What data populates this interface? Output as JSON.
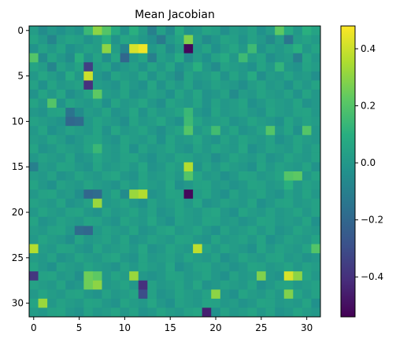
{
  "chart_data": {
    "type": "heatmap",
    "title": "Mean Jacobian",
    "rows": 32,
    "cols": 32,
    "x_ticks": [
      0,
      5,
      10,
      15,
      20,
      25,
      30
    ],
    "y_ticks": [
      0,
      5,
      10,
      15,
      20,
      25,
      30
    ],
    "colormap": "viridis",
    "vmin": -0.54,
    "vmax": 0.48,
    "colorbar_ticks": [
      0.4,
      0.2,
      0.0,
      -0.2,
      -0.4
    ],
    "colorbar_tick_labels": [
      "0.4",
      "0.2",
      "0.0",
      "−0.2",
      "−0.4"
    ],
    "values": [
      [
        0.02,
        -0.05,
        0.0,
        -0.03,
        0.01,
        -0.02,
        0.14,
        0.3,
        0.2,
        0.08,
        -0.02,
        0.1,
        0.02,
        -0.1,
        0.03,
        -0.05,
        0.08,
        -0.02,
        0.0,
        0.05,
        0.03,
        -0.04,
        0.02,
        0.0,
        0.04,
        -0.03,
        0.02,
        0.22,
        0.08,
        0.0,
        0.1,
        0.05
      ],
      [
        0.05,
        0.0,
        -0.08,
        0.02,
        0.05,
        0.03,
        -0.02,
        0.02,
        0.1,
        -0.02,
        0.06,
        0.04,
        0.0,
        -0.04,
        -0.12,
        0.0,
        0.05,
        0.28,
        0.02,
        -0.05,
        -0.01,
        0.05,
        0.03,
        -0.02,
        0.04,
        0.0,
        -0.06,
        0.02,
        -0.14,
        0.02,
        0.04,
        0.01
      ],
      [
        -0.02,
        0.04,
        0.0,
        0.05,
        -0.03,
        0.0,
        0.04,
        0.02,
        0.3,
        0.02,
        -0.08,
        0.42,
        0.46,
        0.0,
        0.04,
        -0.05,
        0.02,
        -0.52,
        0.0,
        0.05,
        -0.03,
        0.02,
        0.06,
        0.0,
        0.15,
        -0.02,
        0.03,
        0.0,
        0.04,
        0.1,
        0.0,
        0.05
      ],
      [
        0.2,
        -0.05,
        0.05,
        0.0,
        -0.05,
        0.1,
        -0.02,
        0.05,
        -0.04,
        0.06,
        -0.2,
        0.0,
        0.05,
        -0.1,
        0.03,
        0.0,
        0.08,
        -0.05,
        0.02,
        -0.03,
        0.04,
        0.08,
        0.0,
        0.15,
        0.02,
        0.05,
        -0.04,
        0.0,
        0.02,
        -0.1,
        0.06,
        0.0
      ],
      [
        0.05,
        0.02,
        -0.08,
        0.04,
        0.0,
        0.05,
        -0.35,
        0.02,
        0.05,
        -0.04,
        0.0,
        0.03,
        -0.02,
        0.05,
        0.0,
        0.06,
        -0.03,
        0.02,
        0.1,
        0.0,
        -0.05,
        0.04,
        0.02,
        0.0,
        -0.03,
        0.05,
        0.0,
        0.12,
        0.0,
        -0.02,
        0.05,
        0.02
      ],
      [
        0.0,
        0.06,
        0.02,
        -0.02,
        0.08,
        0.0,
        0.4,
        0.0,
        -0.04,
        0.05,
        0.02,
        0.0,
        0.06,
        -0.02,
        0.04,
        0.0,
        -0.06,
        0.05,
        0.0,
        0.02,
        0.06,
        -0.02,
        0.05,
        0.0,
        0.08,
        -0.04,
        0.02,
        0.0,
        0.05,
        0.0,
        0.02,
        -0.04
      ],
      [
        0.04,
        -0.03,
        0.05,
        0.0,
        0.02,
        0.04,
        -0.4,
        0.02,
        0.0,
        -0.02,
        0.05,
        0.0,
        -0.03,
        0.06,
        -0.02,
        0.04,
        0.0,
        0.05,
        -0.02,
        0.0,
        0.04,
        0.02,
        0.0,
        -0.04,
        0.02,
        0.05,
        0.0,
        0.02,
        -0.03,
        0.04,
        0.0,
        0.05
      ],
      [
        -0.02,
        0.05,
        0.0,
        0.06,
        -0.04,
        0.0,
        0.05,
        0.22,
        0.02,
        0.0,
        0.05,
        -0.02,
        0.0,
        0.04,
        0.02,
        -0.03,
        0.05,
        0.0,
        0.06,
        -0.02,
        0.0,
        0.04,
        -0.05,
        0.02,
        0.0,
        0.05,
        0.02,
        0.0,
        0.04,
        -0.02,
        0.05,
        0.0
      ],
      [
        0.05,
        0.0,
        0.2,
        -0.02,
        0.05,
        0.02,
        0.0,
        0.04,
        -0.03,
        0.05,
        0.0,
        0.02,
        0.06,
        0.0,
        -0.04,
        0.05,
        0.02,
        0.0,
        0.05,
        -0.02,
        0.04,
        0.0,
        0.02,
        0.05,
        -0.03,
        0.0,
        0.04,
        0.02,
        0.0,
        0.05,
        -0.02,
        0.0
      ],
      [
        0.0,
        -0.02,
        0.04,
        0.05,
        -0.15,
        -0.05,
        0.02,
        0.0,
        0.05,
        -0.02,
        0.0,
        0.06,
        -0.02,
        0.04,
        0.0,
        0.02,
        0.05,
        0.14,
        0.0,
        -0.03,
        0.05,
        0.0,
        0.02,
        0.04,
        0.0,
        -0.02,
        0.05,
        0.02,
        0.0,
        0.04,
        0.05,
        0.0
      ],
      [
        0.04,
        0.02,
        0.0,
        -0.02,
        -0.2,
        -0.18,
        0.0,
        0.05,
        0.02,
        0.0,
        -0.04,
        0.05,
        0.0,
        0.02,
        0.06,
        0.0,
        -0.03,
        0.15,
        0.05,
        0.0,
        0.02,
        0.04,
        -0.02,
        0.0,
        0.05,
        0.02,
        0.0,
        -0.03,
        0.05,
        0.0,
        0.04,
        0.02
      ],
      [
        0.0,
        0.05,
        -0.03,
        0.0,
        0.04,
        0.02,
        0.0,
        0.05,
        -0.02,
        0.06,
        0.0,
        0.02,
        0.05,
        0.0,
        -0.04,
        0.02,
        0.05,
        0.2,
        0.0,
        0.04,
        0.16,
        0.0,
        0.05,
        -0.02,
        0.0,
        0.04,
        0.2,
        0.0,
        0.05,
        -0.03,
        0.2,
        0.0
      ],
      [
        0.02,
        0.0,
        0.05,
        0.02,
        -0.03,
        0.0,
        0.04,
        0.05,
        0.0,
        -0.02,
        0.05,
        0.02,
        0.0,
        0.04,
        -0.03,
        0.05,
        0.0,
        0.02,
        0.06,
        0.0,
        -0.02,
        0.04,
        0.0,
        0.05,
        0.02,
        0.0,
        0.04,
        -0.03,
        0.0,
        0.05,
        0.02,
        0.0
      ],
      [
        0.05,
        -0.02,
        0.0,
        0.04,
        0.02,
        0.0,
        0.05,
        0.14,
        0.02,
        0.0,
        0.05,
        -0.03,
        0.04,
        0.0,
        0.02,
        0.05,
        0.0,
        -0.02,
        0.04,
        0.0,
        0.05,
        0.02,
        0.0,
        0.06,
        -0.03,
        0.0,
        0.04,
        0.02,
        0.0,
        0.05,
        0.0,
        0.04
      ],
      [
        0.0,
        0.04,
        0.02,
        0.0,
        0.05,
        -0.02,
        0.0,
        0.06,
        0.02,
        0.0,
        0.04,
        0.05,
        0.0,
        -0.03,
        0.02,
        0.0,
        0.05,
        0.04,
        0.0,
        0.02,
        -0.04,
        0.0,
        0.05,
        0.02,
        0.0,
        0.04,
        -0.02,
        0.0,
        0.05,
        0.02,
        0.0,
        0.04
      ],
      [
        -0.1,
        0.02,
        0.0,
        0.05,
        0.04,
        0.0,
        -0.02,
        0.05,
        0.0,
        0.02,
        0.04,
        0.0,
        0.06,
        -0.02,
        0.0,
        0.05,
        0.02,
        0.36,
        -0.02,
        0.04,
        0.0,
        0.05,
        0.02,
        0.0,
        -0.03,
        0.05,
        0.0,
        0.04,
        0.02,
        0.0,
        0.05,
        -0.02
      ],
      [
        0.02,
        0.0,
        0.04,
        -0.02,
        0.0,
        0.05,
        0.02,
        0.0,
        0.04,
        0.06,
        0.0,
        -0.02,
        0.05,
        0.0,
        0.02,
        0.04,
        0.0,
        0.2,
        0.05,
        0.0,
        0.02,
        -0.03,
        0.0,
        0.05,
        0.04,
        0.0,
        0.02,
        0.05,
        0.2,
        0.22,
        0.0,
        0.05
      ],
      [
        0.05,
        0.0,
        -0.03,
        0.04,
        0.02,
        0.0,
        0.05,
        0.02,
        0.0,
        -0.02,
        0.04,
        0.0,
        0.05,
        0.02,
        0.0,
        0.06,
        -0.03,
        0.0,
        0.04,
        0.05,
        0.0,
        0.02,
        -0.02,
        0.0,
        0.05,
        0.04,
        0.0,
        0.02,
        0.1,
        0.0,
        0.04,
        0.02
      ],
      [
        0.0,
        0.04,
        0.05,
        0.0,
        0.02,
        -0.04,
        -0.2,
        -0.18,
        0.0,
        0.05,
        -0.05,
        0.32,
        0.36,
        -0.02,
        0.0,
        0.05,
        0.04,
        -0.52,
        0.02,
        0.05,
        0.0,
        -0.03,
        0.04,
        0.0,
        0.02,
        0.05,
        0.0,
        -0.02,
        0.04,
        0.0,
        0.05,
        0.0
      ],
      [
        0.04,
        0.02,
        0.0,
        0.05,
        -0.02,
        0.0,
        0.04,
        0.32,
        0.0,
        0.02,
        0.05,
        0.0,
        -0.03,
        0.04,
        0.0,
        0.02,
        0.05,
        0.0,
        0.06,
        -0.02,
        0.0,
        0.04,
        0.02,
        0.0,
        0.05,
        -0.03,
        0.0,
        0.04,
        0.05,
        0.0,
        0.02,
        0.04
      ],
      [
        0.0,
        0.05,
        0.02,
        0.0,
        0.04,
        0.05,
        0.0,
        -0.02,
        0.04,
        0.0,
        0.02,
        0.05,
        0.0,
        0.04,
        -0.02,
        0.0,
        0.05,
        0.02,
        0.0,
        0.04,
        0.06,
        0.0,
        -0.03,
        0.05,
        0.02,
        0.0,
        0.04,
        0.0,
        0.02,
        0.05,
        0.0,
        0.04
      ],
      [
        0.05,
        -0.02,
        0.0,
        0.04,
        0.02,
        0.0,
        0.05,
        0.04,
        0.0,
        -0.02,
        0.05,
        0.02,
        0.0,
        0.06,
        0.0,
        -0.03,
        0.04,
        0.02,
        0.0,
        0.05,
        0.04,
        0.0,
        0.02,
        -0.02,
        0.0,
        0.05,
        0.04,
        0.0,
        0.02,
        0.0,
        0.05,
        -0.03
      ],
      [
        0.02,
        0.0,
        0.04,
        0.05,
        0.0,
        -0.18,
        -0.2,
        0.0,
        0.04,
        0.02,
        0.0,
        0.05,
        -0.02,
        0.0,
        0.04,
        0.06,
        0.0,
        0.02,
        0.05,
        0.0,
        -0.03,
        0.04,
        0.0,
        0.02,
        0.05,
        0.0,
        0.04,
        -0.02,
        0.0,
        0.05,
        0.02,
        0.0
      ],
      [
        0.0,
        0.05,
        0.02,
        0.0,
        -0.04,
        0.05,
        0.0,
        0.02,
        0.04,
        0.0,
        0.05,
        -0.02,
        0.0,
        0.04,
        0.02,
        0.0,
        0.05,
        0.04,
        0.0,
        -0.02,
        0.05,
        0.0,
        0.02,
        0.04,
        0.0,
        0.05,
        -0.03,
        0.0,
        0.04,
        0.02,
        0.0,
        0.05
      ],
      [
        0.36,
        0.02,
        0.0,
        0.05,
        0.04,
        0.0,
        -0.02,
        0.05,
        0.0,
        0.02,
        0.04,
        0.0,
        0.06,
        -0.02,
        0.0,
        0.05,
        0.02,
        0.0,
        0.38,
        0.04,
        0.0,
        0.05,
        0.02,
        0.0,
        -0.03,
        0.05,
        0.0,
        0.04,
        0.02,
        0.0,
        0.05,
        0.2
      ],
      [
        0.02,
        0.0,
        0.04,
        -0.02,
        0.0,
        0.05,
        0.02,
        0.0,
        0.04,
        0.06,
        0.0,
        -0.02,
        0.05,
        0.0,
        0.02,
        0.04,
        0.0,
        0.05,
        0.02,
        0.0,
        0.04,
        -0.03,
        0.0,
        0.05,
        0.02,
        0.0,
        0.04,
        0.05,
        0.0,
        0.02,
        -0.02,
        0.0
      ],
      [
        0.05,
        0.0,
        -0.03,
        0.04,
        0.02,
        0.0,
        0.05,
        0.02,
        0.0,
        -0.02,
        0.04,
        0.0,
        0.05,
        0.02,
        0.0,
        0.06,
        -0.03,
        0.0,
        0.04,
        0.05,
        0.0,
        0.02,
        -0.02,
        0.0,
        0.05,
        0.04,
        0.0,
        0.02,
        0.05,
        0.0,
        0.04,
        0.02
      ],
      [
        -0.38,
        0.04,
        0.05,
        0.0,
        0.02,
        -0.04,
        0.25,
        0.22,
        0.0,
        0.05,
        0.02,
        0.32,
        0.0,
        -0.02,
        0.0,
        0.05,
        0.04,
        0.0,
        0.02,
        0.05,
        0.0,
        -0.03,
        0.04,
        0.0,
        0.02,
        0.28,
        0.0,
        -0.02,
        0.42,
        0.3,
        0.05,
        0.0
      ],
      [
        0.04,
        0.02,
        0.0,
        0.05,
        -0.02,
        0.0,
        0.25,
        0.3,
        0.0,
        0.02,
        0.05,
        0.0,
        -0.4,
        0.04,
        0.0,
        0.02,
        0.05,
        0.0,
        0.06,
        -0.02,
        0.0,
        0.04,
        0.02,
        0.0,
        0.05,
        -0.03,
        0.0,
        0.04,
        0.05,
        0.0,
        0.02,
        0.04
      ],
      [
        0.0,
        0.05,
        0.02,
        0.0,
        0.04,
        0.05,
        0.0,
        -0.02,
        0.04,
        0.0,
        0.02,
        0.05,
        -0.3,
        0.04,
        -0.02,
        0.0,
        0.05,
        0.02,
        0.0,
        0.04,
        0.3,
        0.0,
        -0.03,
        0.05,
        0.02,
        0.0,
        0.04,
        0.0,
        0.28,
        0.05,
        0.0,
        0.04
      ],
      [
        0.05,
        0.32,
        0.0,
        0.04,
        0.02,
        0.0,
        0.05,
        0.04,
        0.0,
        -0.02,
        0.05,
        0.02,
        0.0,
        0.06,
        0.0,
        -0.03,
        0.04,
        0.02,
        0.0,
        0.05,
        0.04,
        0.0,
        0.02,
        -0.02,
        0.0,
        0.05,
        0.04,
        0.0,
        0.02,
        0.0,
        0.05,
        -0.03
      ],
      [
        0.02,
        0.0,
        0.04,
        0.05,
        0.0,
        -0.02,
        0.04,
        0.0,
        0.02,
        0.05,
        0.0,
        0.04,
        -0.02,
        0.0,
        0.05,
        0.02,
        0.0,
        0.04,
        0.06,
        -0.45,
        -0.03,
        0.04,
        0.0,
        0.02,
        0.05,
        0.0,
        0.04,
        -0.02,
        0.0,
        0.05,
        0.02,
        0.0
      ]
    ]
  }
}
